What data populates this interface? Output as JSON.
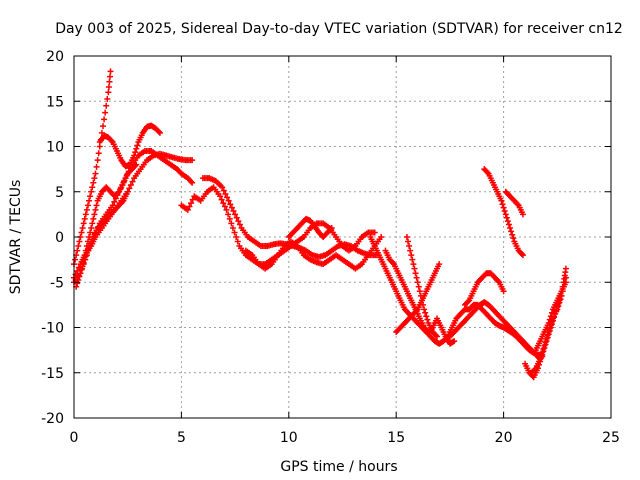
{
  "chart_data": {
    "type": "scatter",
    "title": "Day 003 of 2025, Sidereal Day-to-day VTEC variation (SDTVAR) for receiver cn12",
    "xlabel": "GPS time / hours",
    "ylabel": "SDTVAR / TECUs",
    "xlim": [
      0,
      25
    ],
    "ylim": [
      -20,
      20
    ],
    "x_ticks": [
      0,
      5,
      10,
      15,
      20,
      25
    ],
    "y_ticks": [
      -20,
      -15,
      -10,
      -5,
      0,
      5,
      10,
      15,
      20
    ],
    "grid": true,
    "marker": "+",
    "color": "#ff0000",
    "series": [
      {
        "name": "s1",
        "x": [
          0.0,
          0.2,
          0.4,
          0.6,
          0.8,
          1.0,
          1.2,
          1.4,
          1.6,
          1.7
        ],
        "y": [
          -3.0,
          -1.0,
          1.0,
          3.0,
          5.0,
          7.0,
          10.0,
          13.0,
          16.0,
          18.3
        ]
      },
      {
        "name": "s2",
        "x": [
          0.0,
          0.3,
          0.6,
          0.9,
          1.2,
          1.5,
          1.8,
          2.1,
          2.4,
          2.7,
          3.0,
          3.3,
          3.6,
          3.9,
          4.2,
          4.5,
          4.8,
          5.0,
          5.3,
          5.5
        ],
        "y": [
          -5.0,
          -4.0,
          -2.0,
          0.0,
          1.5,
          2.5,
          3.5,
          5.0,
          6.5,
          8.0,
          9.0,
          9.5,
          9.5,
          9.0,
          8.5,
          8.0,
          7.5,
          7.0,
          6.5,
          6.0
        ]
      },
      {
        "name": "s3",
        "x": [
          0.0,
          0.3,
          0.5,
          0.8,
          1.0,
          1.3,
          1.6,
          1.9,
          2.2,
          2.5,
          2.8,
          3.1,
          3.4,
          3.7,
          4.0,
          4.3,
          4.6,
          4.9,
          5.2,
          5.5
        ],
        "y": [
          -4.5,
          -3.0,
          -2.0,
          -1.0,
          0.0,
          1.0,
          2.0,
          3.0,
          4.0,
          5.0,
          6.5,
          7.5,
          8.5,
          9.0,
          9.2,
          9.0,
          8.8,
          8.6,
          8.5,
          8.5
        ]
      },
      {
        "name": "s4",
        "x": [
          0.1,
          0.3,
          0.5,
          0.7,
          0.9,
          1.1,
          1.3,
          1.5,
          1.7,
          1.9,
          2.1,
          2.3,
          2.5
        ],
        "y": [
          -5.5,
          -4.0,
          -2.5,
          -1.0,
          0.0,
          1.0,
          1.5,
          2.0,
          2.5,
          3.0,
          3.5,
          4.0,
          5.0
        ]
      },
      {
        "name": "s5",
        "x": [
          1.2,
          1.4,
          1.6,
          1.8,
          2.0,
          2.2,
          2.4,
          2.6,
          2.8,
          3.0,
          3.2,
          3.4,
          3.6,
          3.8,
          4.0
        ],
        "y": [
          10.5,
          11.2,
          11.0,
          10.5,
          9.5,
          8.5,
          7.8,
          8.0,
          9.0,
          10.5,
          11.5,
          12.2,
          12.3,
          12.0,
          11.5
        ]
      },
      {
        "name": "s6",
        "x": [
          0.5,
          0.7,
          0.9,
          1.1,
          1.3,
          1.5,
          1.7,
          1.9,
          2.1,
          2.3,
          2.5,
          2.7,
          2.9
        ],
        "y": [
          -2.0,
          0.0,
          2.0,
          4.0,
          5.0,
          5.5,
          5.0,
          4.5,
          5.0,
          6.0,
          7.0,
          7.5,
          8.0
        ]
      },
      {
        "name": "s7",
        "x": [
          5.0,
          5.3,
          5.6,
          5.9,
          6.2,
          6.5,
          6.8,
          7.1,
          7.4,
          7.7,
          8.0,
          8.3,
          8.6,
          8.9,
          9.2,
          9.5,
          9.8,
          10.1,
          10.4,
          10.7,
          11.0,
          11.3,
          11.6,
          11.9,
          12.2,
          12.5,
          12.8,
          13.1,
          13.4,
          13.7,
          14.0
        ],
        "y": [
          3.5,
          3.0,
          4.5,
          4.0,
          5.0,
          5.5,
          4.5,
          3.0,
          1.0,
          -1.0,
          -2.0,
          -2.5,
          -3.0,
          -3.0,
          -2.5,
          -2.0,
          -1.5,
          -1.0,
          -0.5,
          0.0,
          1.0,
          1.5,
          1.5,
          1.0,
          0.0,
          -1.0,
          -1.5,
          -1.0,
          0.0,
          0.5,
          0.5
        ]
      },
      {
        "name": "s8",
        "x": [
          6.0,
          6.3,
          6.6,
          6.9,
          7.2,
          7.5,
          7.8,
          8.1,
          8.4,
          8.7,
          9.0,
          9.3,
          9.6,
          9.9,
          10.2,
          10.5,
          10.8,
          11.1,
          11.4,
          11.7,
          12.0,
          12.3,
          12.6,
          12.9,
          13.2,
          13.5,
          13.8,
          14.1
        ],
        "y": [
          6.5,
          6.5,
          6.2,
          5.5,
          4.0,
          2.5,
          1.0,
          0.0,
          -0.5,
          -1.0,
          -1.0,
          -0.8,
          -0.7,
          -0.8,
          -1.0,
          -1.2,
          -1.5,
          -2.0,
          -2.2,
          -2.0,
          -1.5,
          -1.0,
          -0.8,
          -1.0,
          -1.5,
          -1.8,
          -2.0,
          -2.0
        ]
      },
      {
        "name": "s9",
        "x": [
          8.0,
          8.3,
          8.6,
          8.9,
          9.2,
          9.5,
          9.8,
          10.1,
          10.4,
          10.7,
          11.0,
          11.3,
          11.6,
          11.9,
          12.2,
          12.5,
          12.8,
          13.1,
          13.4,
          13.7,
          14.0,
          14.3
        ],
        "y": [
          -1.5,
          -2.0,
          -3.0,
          -3.5,
          -3.0,
          -2.0,
          -1.0,
          -0.5,
          -1.0,
          -2.0,
          -2.5,
          -2.8,
          -3.0,
          -2.5,
          -2.0,
          -2.5,
          -3.0,
          -3.5,
          -3.0,
          -2.0,
          -1.0,
          0.0
        ]
      },
      {
        "name": "s10",
        "x": [
          10.0,
          10.2,
          10.4,
          10.6,
          10.8,
          11.0,
          11.2,
          11.4,
          11.6,
          11.8,
          12.0
        ],
        "y": [
          0.0,
          0.5,
          1.0,
          1.5,
          2.0,
          1.8,
          1.2,
          0.5,
          0.0,
          0.5,
          1.0
        ]
      },
      {
        "name": "s11",
        "x": [
          13.8,
          14.0,
          14.2,
          14.4,
          14.6,
          14.8,
          15.0,
          15.2,
          15.4,
          15.6,
          15.8,
          16.0,
          16.2,
          16.4,
          16.6,
          16.8,
          17.0,
          17.2,
          17.4,
          17.6,
          17.8,
          18.0,
          18.2,
          18.4,
          18.6,
          18.8,
          19.0,
          19.2,
          19.4,
          19.6,
          19.8,
          20.0,
          20.2,
          20.4,
          20.6,
          20.8,
          21.0,
          21.2,
          21.4,
          21.6,
          21.8
        ],
        "y": [
          0.0,
          -1.0,
          -2.0,
          -3.0,
          -4.0,
          -5.0,
          -6.0,
          -7.0,
          -8.0,
          -8.5,
          -9.0,
          -9.5,
          -10.0,
          -10.5,
          -11.0,
          -11.5,
          -11.8,
          -11.5,
          -11.0,
          -10.0,
          -9.0,
          -8.5,
          -8.0,
          -8.0,
          -7.5,
          -7.5,
          -8.0,
          -8.5,
          -9.0,
          -9.5,
          -9.8,
          -10.0,
          -10.3,
          -10.6,
          -11.0,
          -11.5,
          -12.0,
          -12.5,
          -12.8,
          -13.0,
          -13.2
        ]
      },
      {
        "name": "s12",
        "x": [
          14.5,
          14.7,
          14.9,
          15.1,
          15.3,
          15.5,
          15.7,
          15.9,
          16.1,
          16.3,
          16.5,
          16.7,
          16.9,
          17.1,
          17.3,
          17.5,
          17.7
        ],
        "y": [
          -1.5,
          -2.5,
          -3.0,
          -4.0,
          -5.0,
          -6.0,
          -7.0,
          -8.0,
          -9.0,
          -10.0,
          -10.5,
          -10.0,
          -9.0,
          -10.0,
          -11.0,
          -11.8,
          -11.5
        ]
      },
      {
        "name": "s13",
        "x": [
          15.0,
          15.2,
          15.4,
          15.6,
          15.8,
          16.0,
          16.2,
          16.4,
          16.6,
          16.8,
          17.0
        ],
        "y": [
          -10.5,
          -10.0,
          -9.5,
          -9.0,
          -8.5,
          -8.0,
          -7.0,
          -6.0,
          -5.0,
          -4.0,
          -3.0
        ]
      },
      {
        "name": "s14",
        "x": [
          15.5,
          15.7,
          15.9,
          16.1,
          16.3,
          16.5,
          16.7,
          16.9
        ],
        "y": [
          0.0,
          -2.0,
          -4.0,
          -6.0,
          -8.0,
          -9.5,
          -10.5,
          -11.0
        ]
      },
      {
        "name": "s15",
        "x": [
          17.5,
          17.7,
          17.9,
          18.1,
          18.3,
          18.5,
          18.7,
          18.9,
          19.1,
          19.3,
          19.5,
          19.7,
          19.9,
          20.1,
          20.3,
          20.5,
          20.7,
          20.9,
          21.1,
          21.3,
          21.5,
          21.7
        ],
        "y": [
          -11.0,
          -10.5,
          -10.0,
          -9.5,
          -9.0,
          -8.5,
          -8.0,
          -7.5,
          -7.2,
          -7.5,
          -8.0,
          -8.5,
          -9.0,
          -9.5,
          -10.0,
          -10.5,
          -11.0,
          -11.5,
          -12.0,
          -12.5,
          -13.0,
          -13.5
        ]
      },
      {
        "name": "s16",
        "x": [
          18.2,
          18.4,
          18.6,
          18.8,
          19.0,
          19.2,
          19.4,
          19.6,
          19.8,
          20.0
        ],
        "y": [
          -7.5,
          -7.0,
          -6.0,
          -5.0,
          -4.5,
          -4.0,
          -4.0,
          -4.5,
          -5.0,
          -6.0
        ]
      },
      {
        "name": "s17",
        "x": [
          19.1,
          19.3,
          19.5,
          19.7,
          19.9,
          20.1,
          20.3,
          20.5,
          20.7,
          20.9
        ],
        "y": [
          7.5,
          7.0,
          6.0,
          5.0,
          4.0,
          2.5,
          1.0,
          -0.5,
          -1.5,
          -2.0
        ]
      },
      {
        "name": "s18",
        "x": [
          20.1,
          20.3,
          20.5,
          20.7,
          20.9
        ],
        "y": [
          5.0,
          4.5,
          4.0,
          3.5,
          2.5
        ]
      },
      {
        "name": "s19",
        "x": [
          21.0,
          21.2,
          21.4,
          21.6,
          21.8,
          22.0,
          22.2,
          22.4,
          22.6,
          22.8,
          22.9
        ],
        "y": [
          -14.0,
          -15.0,
          -15.5,
          -14.5,
          -13.0,
          -11.5,
          -10.0,
          -8.5,
          -7.0,
          -5.0,
          -3.5
        ]
      },
      {
        "name": "s20",
        "x": [
          21.3,
          21.5,
          21.7,
          21.9,
          22.1,
          22.3,
          22.5,
          22.7,
          22.9
        ],
        "y": [
          -15.0,
          -14.5,
          -13.5,
          -12.0,
          -10.5,
          -9.0,
          -8.0,
          -6.5,
          -4.5
        ]
      },
      {
        "name": "s21",
        "x": [
          21.5,
          21.7,
          21.9,
          22.1,
          22.3,
          22.5,
          22.7,
          22.9
        ],
        "y": [
          -12.5,
          -11.5,
          -10.5,
          -9.5,
          -8.0,
          -7.0,
          -6.0,
          -5.0
        ]
      }
    ]
  }
}
